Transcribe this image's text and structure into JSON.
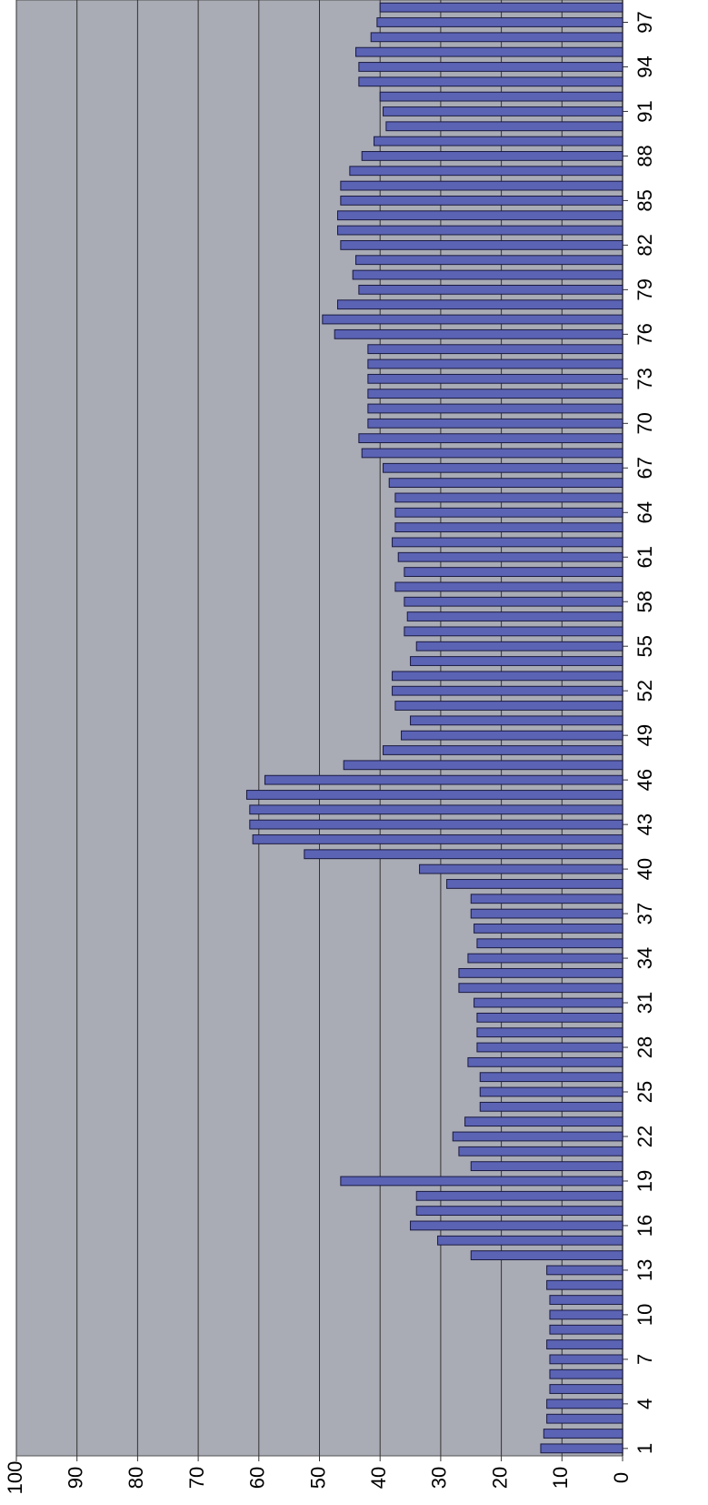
{
  "chart_data": {
    "type": "bar",
    "orientation": "rotated",
    "categories": [
      "1",
      null,
      null,
      "4",
      null,
      null,
      "7",
      null,
      null,
      "10",
      null,
      null,
      "13",
      null,
      null,
      "16",
      null,
      null,
      "19",
      null,
      null,
      "22",
      null,
      null,
      "25",
      null,
      null,
      "28",
      null,
      null,
      "31",
      null,
      null,
      "34",
      null,
      null,
      "37",
      null,
      null,
      "40",
      null,
      null,
      "43",
      null,
      null,
      "46",
      null,
      null,
      "49",
      null,
      null,
      "52",
      null,
      null,
      "55",
      null,
      null,
      "58",
      null,
      null,
      "61",
      null,
      null,
      "64",
      null,
      null,
      "67",
      null,
      null,
      "70",
      null,
      null,
      "73",
      null,
      null,
      "76",
      null,
      null,
      "79",
      null,
      null,
      "82",
      null,
      null,
      "85",
      null,
      null,
      "88",
      null,
      null,
      "91",
      null,
      null,
      "94",
      null,
      null,
      "97",
      null
    ],
    "values": [
      13.5,
      13,
      12.5,
      12.5,
      12,
      12,
      12,
      12.5,
      12,
      12,
      12,
      12.5,
      12.5,
      25,
      30.5,
      35,
      34,
      34,
      46.5,
      25,
      27,
      28,
      26,
      23.5,
      23.5,
      23.5,
      25.5,
      24,
      24,
      24,
      24.5,
      27,
      27,
      25.5,
      24,
      24.5,
      25,
      25,
      29,
      33.5,
      52.5,
      61,
      61.5,
      61.5,
      62,
      59,
      46,
      39.5,
      36.5,
      35,
      37.5,
      38,
      38,
      35,
      34,
      36,
      35.5,
      36,
      37.5,
      36,
      37,
      38,
      37.5,
      37.5,
      37.5,
      38.5,
      39.5,
      43,
      43.5,
      42,
      42,
      42,
      42,
      42,
      42,
      47.5,
      49.5,
      47,
      43.5,
      44.5,
      44,
      46.5,
      47,
      47,
      46.5,
      46.5,
      45,
      43,
      41,
      39,
      39.5,
      40,
      43.5,
      43.5,
      44,
      41.5,
      40.5,
      40
    ],
    "color": "#5b63b5",
    "ylim": [
      0,
      100
    ],
    "yticks": [
      0,
      10,
      20,
      30,
      40,
      50,
      60,
      70,
      80,
      90,
      100
    ],
    "grid": true
  }
}
